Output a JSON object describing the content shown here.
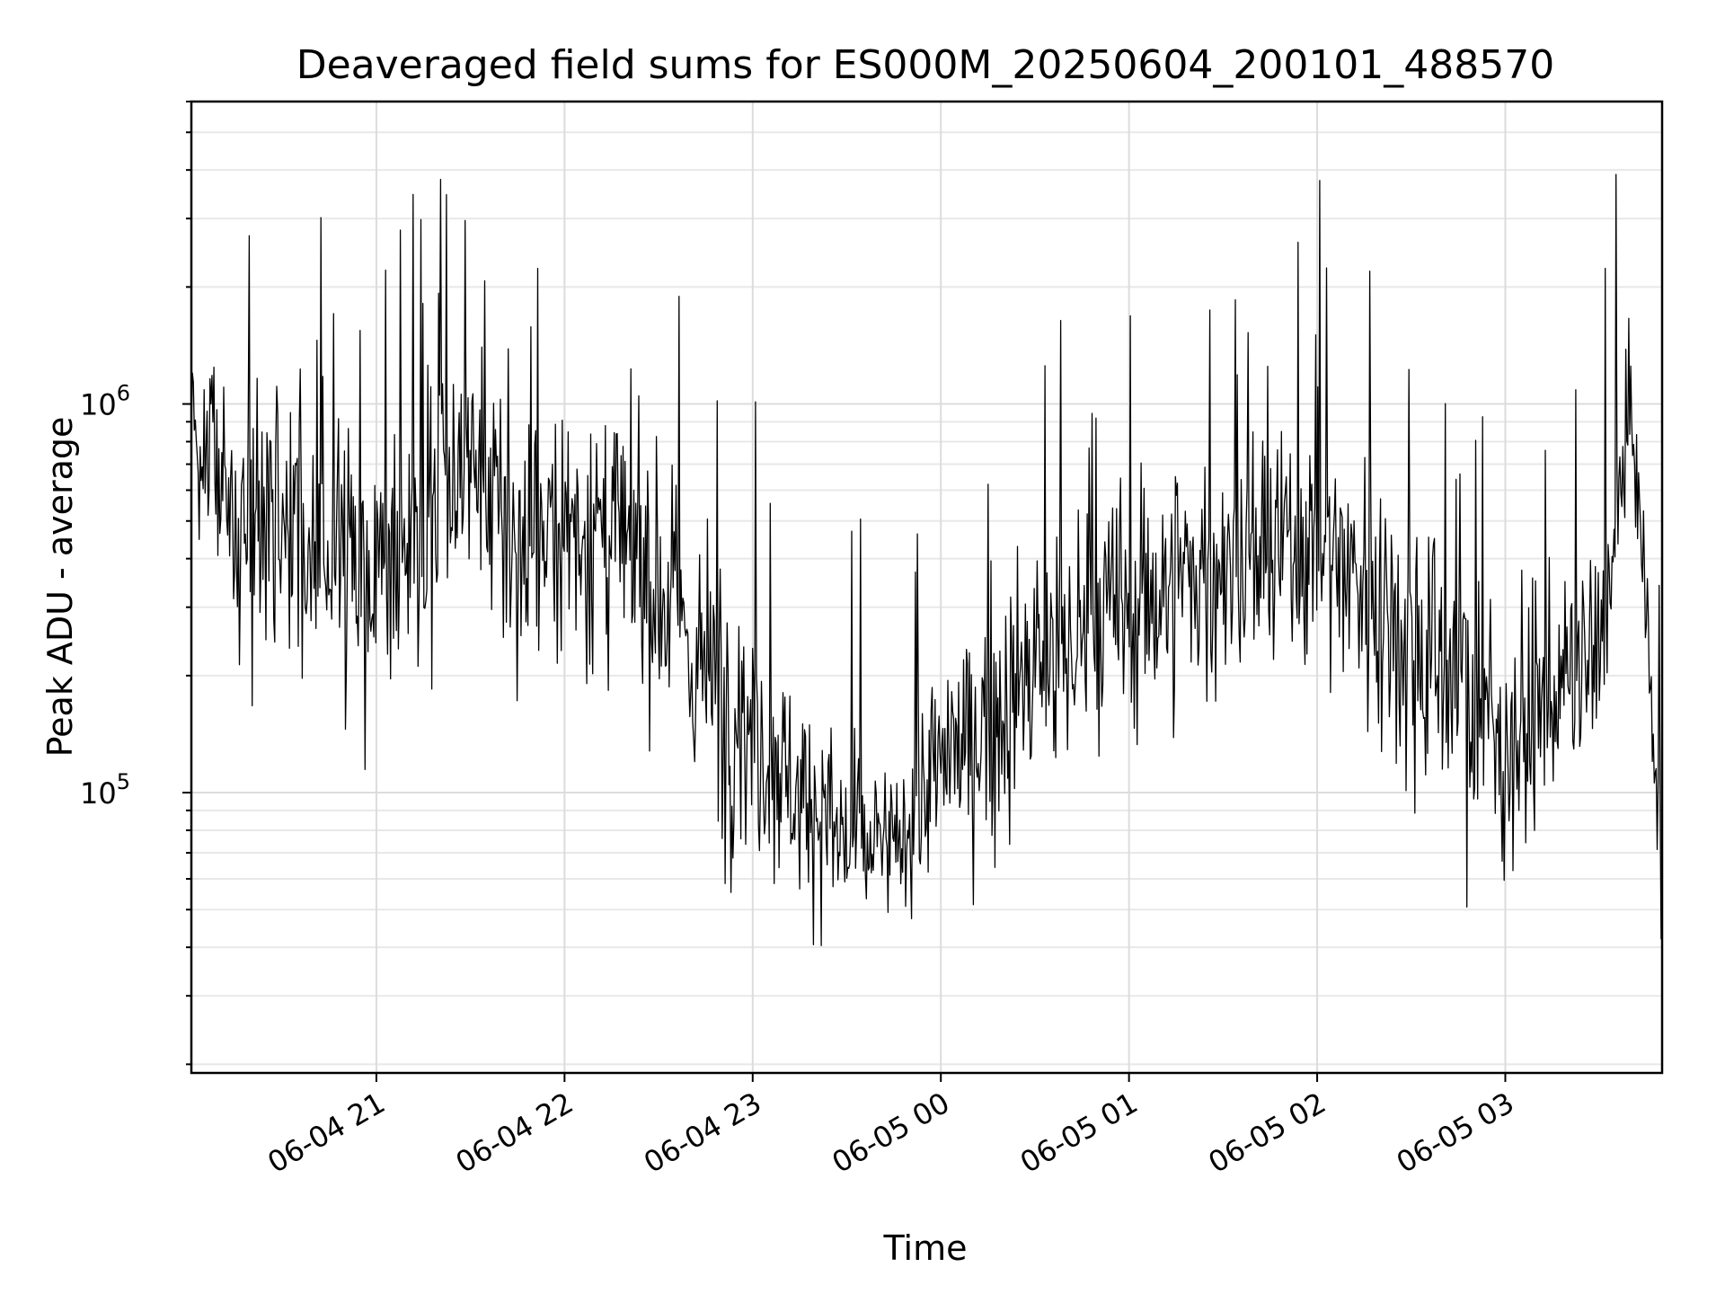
{
  "chart_data": {
    "type": "line",
    "title": "Deaveraged field sums for ES000M_20250604_200101_488570",
    "xlabel": "Time",
    "ylabel": "Peak ADU - average",
    "y_scale": "log",
    "ylim": [
      19000,
      6000000
    ],
    "xlim": [
      "2025-06-04 20:01",
      "2025-06-05 03:50"
    ],
    "x_ticks": [
      "2025-06-04 21:00",
      "2025-06-04 22:00",
      "2025-06-04 23:00",
      "2025-06-05 00:00",
      "2025-06-05 01:00",
      "2025-06-05 02:00",
      "2025-06-05 03:00"
    ],
    "x_tick_labels": [
      "06-04 21",
      "06-04 22",
      "06-04 23",
      "06-05 00",
      "06-05 01",
      "06-05 02",
      "06-05 03"
    ],
    "y_tick_labels": [
      {
        "value": 100000,
        "base": "10",
        "exp": "5"
      },
      {
        "value": 1000000,
        "base": "10",
        "exp": "6"
      }
    ],
    "grid": true,
    "line_color": "#000000",
    "series": [
      {
        "x": [
          "2025-06-04 20:01",
          "2025-06-04 20:15",
          "2025-06-04 20:30",
          "2025-06-04 20:45",
          "2025-06-04 21:00",
          "2025-06-04 21:15",
          "2025-06-04 21:30",
          "2025-06-04 21:45",
          "2025-06-04 22:00",
          "2025-06-04 22:15",
          "2025-06-04 22:30",
          "2025-06-04 22:45",
          "2025-06-04 23:00",
          "2025-06-04 23:15",
          "2025-06-04 23:30",
          "2025-06-04 23:45",
          "2025-06-05 00:00",
          "2025-06-05 00:15",
          "2025-06-05 00:30",
          "2025-06-05 00:45",
          "2025-06-05 01:00",
          "2025-06-05 01:15",
          "2025-06-05 01:30",
          "2025-06-05 01:45",
          "2025-06-05 02:00",
          "2025-06-05 02:15",
          "2025-06-05 02:30",
          "2025-06-05 02:45",
          "2025-06-05 03:00",
          "2025-06-05 03:15",
          "2025-06-05 03:30",
          "2025-06-05 03:40",
          "2025-06-05 03:45",
          "2025-06-05 03:50"
        ],
        "center": [
          950000,
          550000,
          450000,
          420000,
          400000,
          450000,
          700000,
          400000,
          500000,
          450000,
          350000,
          200000,
          150000,
          100000,
          75000,
          70000,
          120000,
          150000,
          200000,
          250000,
          300000,
          350000,
          380000,
          400000,
          450000,
          350000,
          250000,
          200000,
          130000,
          180000,
          220000,
          1000000,
          300000,
          50000
        ],
        "spread": [
          0.25,
          0.45,
          0.5,
          0.5,
          0.45,
          0.45,
          0.45,
          0.45,
          0.45,
          0.45,
          0.45,
          0.5,
          0.45,
          0.35,
          0.3,
          0.3,
          0.3,
          0.4,
          0.45,
          0.45,
          0.45,
          0.45,
          0.4,
          0.4,
          0.4,
          0.45,
          0.5,
          0.5,
          0.4,
          0.4,
          0.35,
          0.2,
          0.2,
          0.25
        ]
      }
    ]
  }
}
